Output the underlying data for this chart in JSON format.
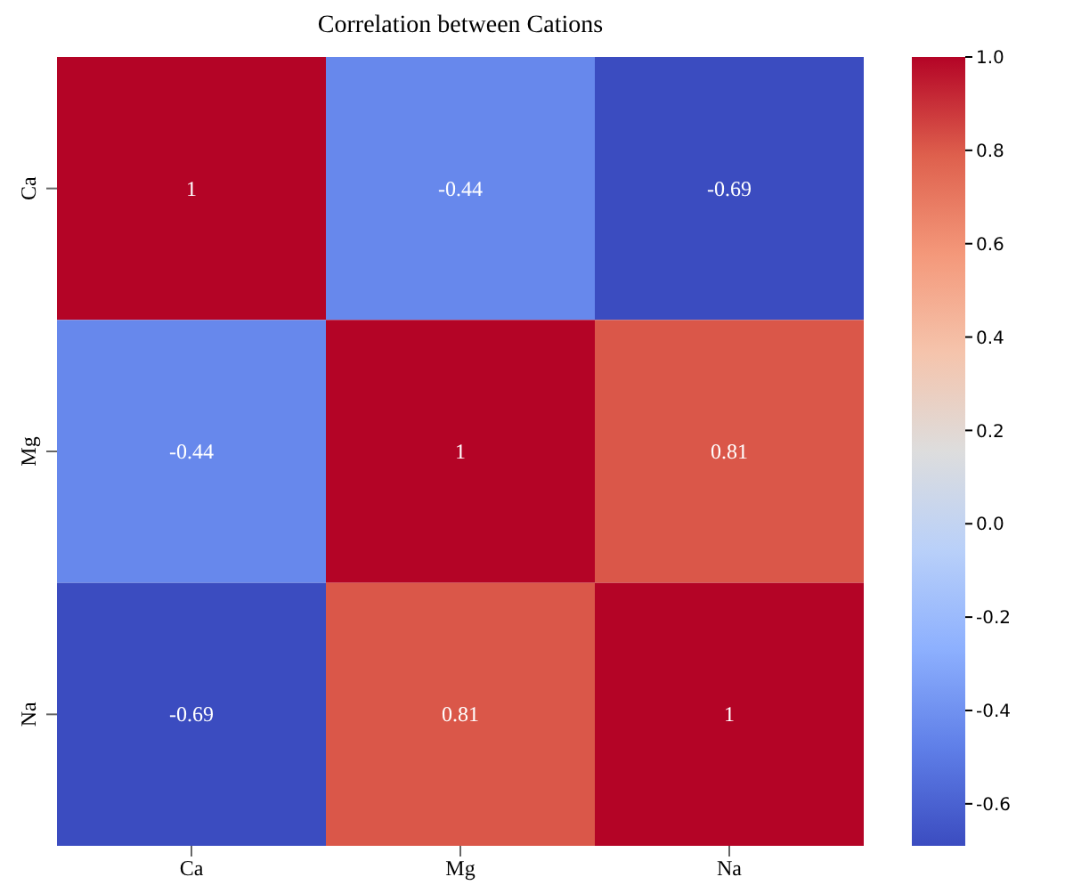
{
  "chart_data": {
    "type": "heatmap",
    "title": "Correlation between Cations",
    "categories": [
      "Ca",
      "Mg",
      "Na"
    ],
    "y_categories": [
      "Ca",
      "Mg",
      "Na"
    ],
    "cells": [
      [
        1,
        -0.44,
        -0.69
      ],
      [
        -0.44,
        1,
        0.81
      ],
      [
        -0.69,
        0.81,
        1
      ]
    ],
    "clim": [
      -0.69,
      1
    ],
    "cticks": [
      {
        "value": -0.6,
        "label": "-0.6"
      },
      {
        "value": -0.4,
        "label": "-0.4"
      },
      {
        "value": -0.2,
        "label": "-0.2"
      },
      {
        "value": 0,
        "label": "0.0"
      },
      {
        "value": 0.2,
        "label": "0.2"
      },
      {
        "value": 0.4,
        "label": "0.4"
      },
      {
        "value": 0.6,
        "label": "0.6"
      },
      {
        "value": 0.8,
        "label": "0.8"
      },
      {
        "value": 1,
        "label": "1.0"
      }
    ],
    "data_labels": true
  }
}
